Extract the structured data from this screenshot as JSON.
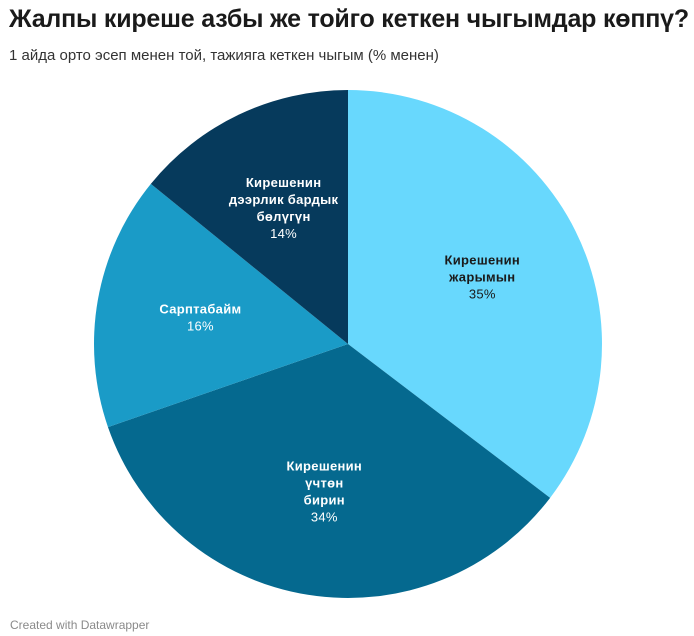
{
  "header": {
    "title": "Жалпы киреше азбы же тойго кеткен чыгымдар көппү?",
    "subtitle": "1 айда орто эсеп менен той, тажияга кеткен чыгым (% менен)"
  },
  "footer": {
    "credit": "Created with Datawrapper"
  },
  "chart_data": {
    "type": "pie",
    "title": "Жалпы киреше азбы же тойго кеткен чыгымдар көппү?",
    "subtitle": "1 айда орто эсеп менен той, тажияга кеткен чыгым (% менен)",
    "slices": [
      {
        "label": "Кирешенин жарымын",
        "label_lines": [
          "Кирешенин",
          "жарымын"
        ],
        "value": 35,
        "value_label": "35%",
        "color": "#68d8fd",
        "text_color": "#1a1a1a"
      },
      {
        "label": "Кирешенин үчтөн бирин",
        "label_lines": [
          "Кирешенин",
          "үчтөн",
          "бирин"
        ],
        "value": 34,
        "value_label": "34%",
        "color": "#05698f",
        "text_color": "#ffffff"
      },
      {
        "label": "Сарптабайм",
        "label_lines": [
          "Сарптабайм"
        ],
        "value": 16,
        "value_label": "16%",
        "color": "#1a9bc7",
        "text_color": "#ffffff"
      },
      {
        "label": "Кирешенин дээрлик бардык бөлүгүн",
        "label_lines": [
          "Кирешенин",
          "дээрлик бардык",
          "бөлүгүн"
        ],
        "value": 14,
        "value_label": "14%",
        "color": "#063a5c",
        "text_color": "#ffffff"
      }
    ],
    "start_angle_deg": 0,
    "direction": "clockwise",
    "legend": "none"
  }
}
